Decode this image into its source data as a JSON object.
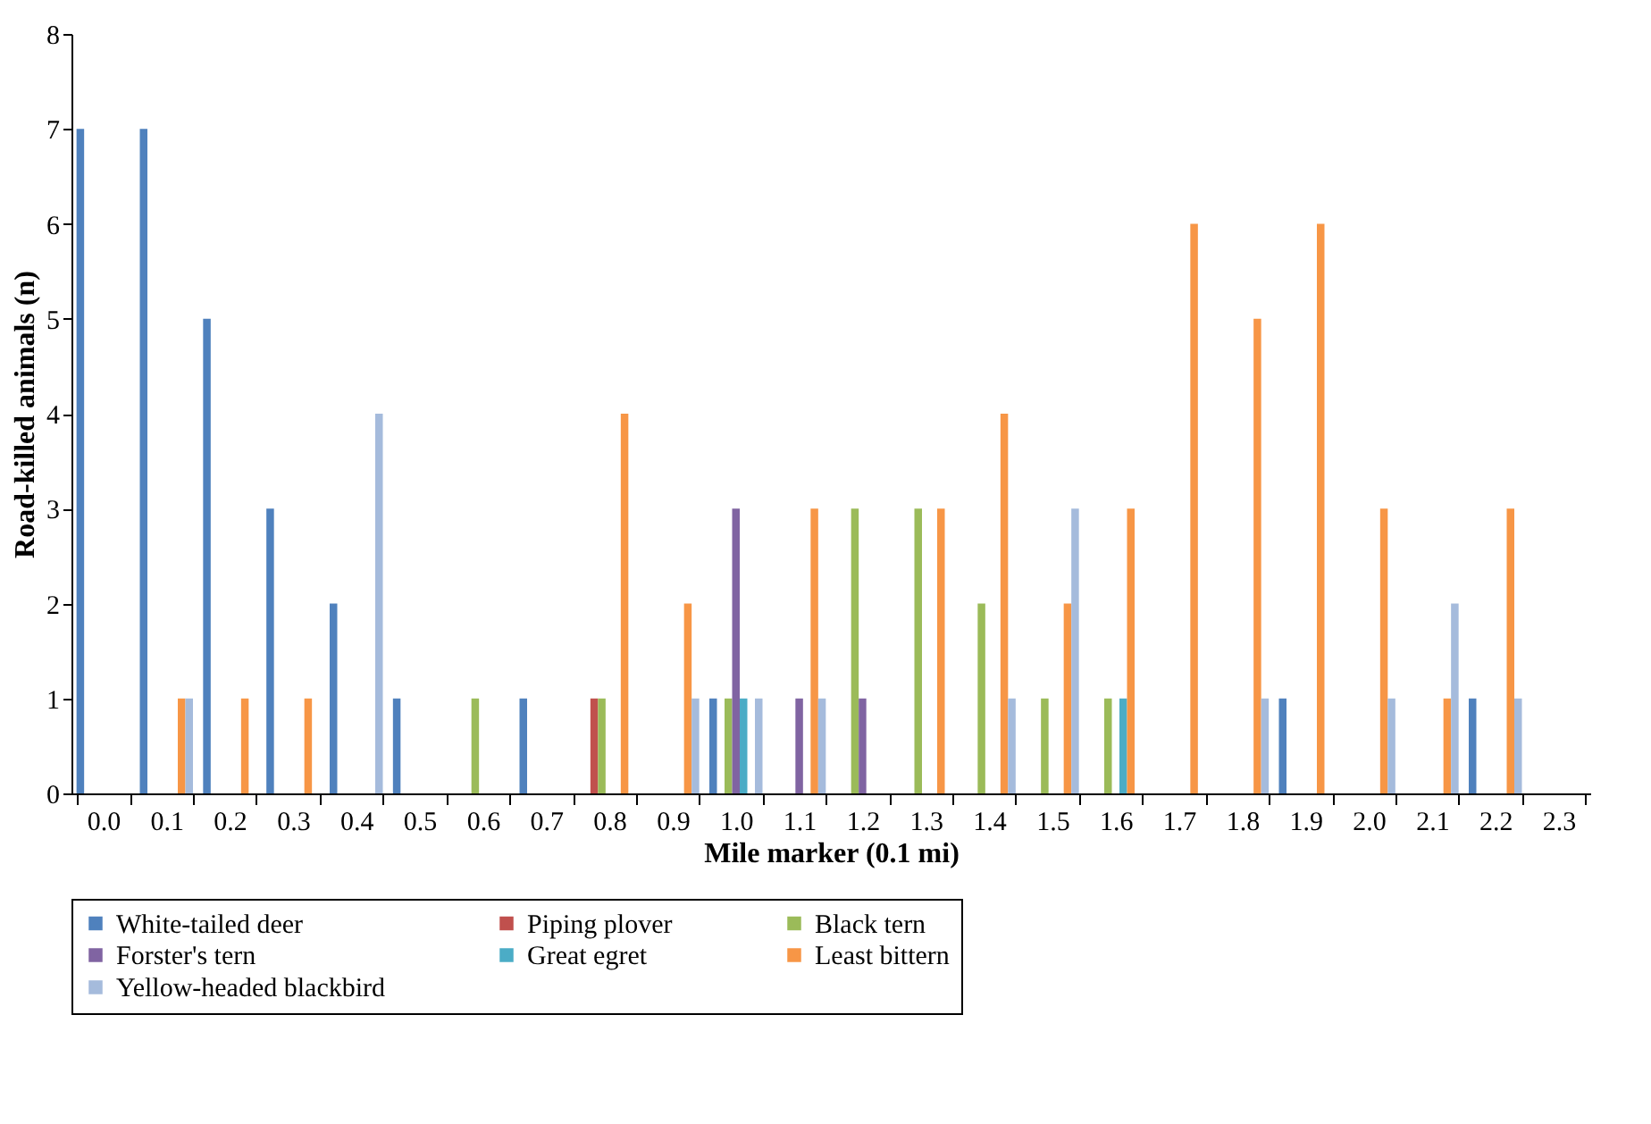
{
  "chart_data": {
    "type": "bar",
    "xlabel": "Mile marker (0.1 mi)",
    "ylabel": "Road-killed animals (n)",
    "categories": [
      "0.0",
      "0.1",
      "0.2",
      "0.3",
      "0.4",
      "0.5",
      "0.6",
      "0.7",
      "0.8",
      "0.9",
      "1.0",
      "1.1",
      "1.2",
      "1.3",
      "1.4",
      "1.5",
      "1.6",
      "1.7",
      "1.8",
      "1.9",
      "2.0",
      "2.1",
      "2.2",
      "2.3"
    ],
    "series": [
      {
        "name": "White-tailed deer",
        "color": "#4f81bd",
        "values": [
          7,
          7,
          5,
          3,
          2,
          1,
          null,
          1,
          null,
          null,
          1,
          null,
          null,
          null,
          null,
          null,
          null,
          null,
          null,
          1,
          null,
          null,
          1,
          null
        ]
      },
      {
        "name": "Piping plover",
        "color": "#c0504d",
        "values": [
          null,
          null,
          null,
          null,
          null,
          null,
          null,
          null,
          1,
          null,
          null,
          null,
          null,
          null,
          null,
          null,
          null,
          null,
          null,
          null,
          null,
          null,
          null,
          null
        ]
      },
      {
        "name": "Black tern",
        "color": "#9bbb59",
        "values": [
          null,
          null,
          null,
          null,
          null,
          null,
          1,
          null,
          1,
          null,
          1,
          null,
          3,
          3,
          2,
          1,
          1,
          null,
          null,
          null,
          null,
          null,
          null,
          null
        ]
      },
      {
        "name": "Forster's tern",
        "color": "#8064a2",
        "values": [
          null,
          null,
          null,
          null,
          null,
          null,
          null,
          null,
          null,
          null,
          3,
          1,
          1,
          null,
          null,
          null,
          null,
          null,
          null,
          null,
          null,
          null,
          null,
          null
        ]
      },
      {
        "name": "Great egret",
        "color": "#4bacc6",
        "values": [
          null,
          null,
          null,
          null,
          null,
          null,
          null,
          null,
          null,
          null,
          1,
          null,
          null,
          null,
          null,
          null,
          1,
          null,
          null,
          null,
          null,
          null,
          null,
          null
        ]
      },
      {
        "name": "Least bittern",
        "color": "#f79646",
        "values": [
          null,
          1,
          1,
          1,
          null,
          null,
          null,
          null,
          4,
          2,
          null,
          3,
          null,
          3,
          4,
          2,
          3,
          6,
          5,
          6,
          3,
          1,
          3,
          null
        ]
      },
      {
        "name": "Yellow-headed blackbird",
        "color": "#a5bbdc",
        "values": [
          null,
          1,
          null,
          null,
          4,
          null,
          null,
          null,
          null,
          1,
          1,
          1,
          null,
          null,
          1,
          3,
          null,
          null,
          1,
          null,
          1,
          2,
          1,
          null
        ]
      }
    ],
    "ylim": [
      0,
      8
    ],
    "yticks": [
      0,
      1,
      2,
      3,
      4,
      5,
      6,
      7,
      8
    ],
    "grid": false,
    "legend": "bottom"
  }
}
